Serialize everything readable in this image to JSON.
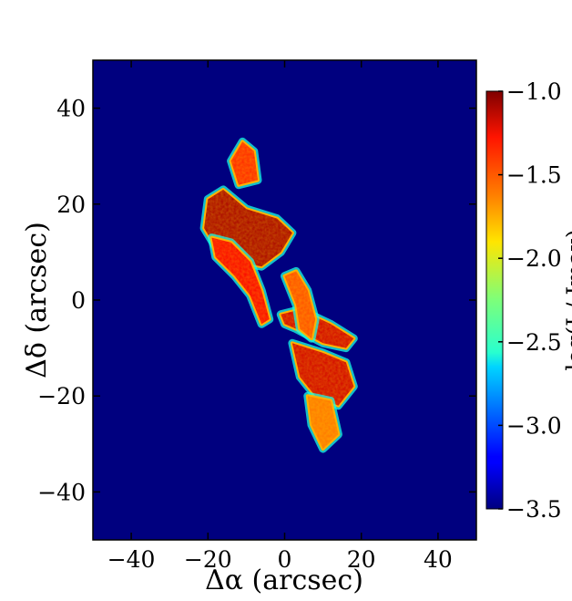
{
  "chart_data": {
    "type": "heatmap",
    "xlabel": "Δα (arcsec)",
    "ylabel": "Δδ (arcsec)",
    "xlim": [
      -50,
      50
    ],
    "ylim": [
      -50,
      50
    ],
    "x_ticks": [
      "−40",
      "−20",
      "0",
      "20",
      "40"
    ],
    "x_tick_values": [
      -40,
      -20,
      0,
      20,
      40
    ],
    "y_ticks": [
      "40",
      "20",
      "0",
      "−20",
      "−40"
    ],
    "y_tick_values": [
      40,
      20,
      0,
      -20,
      -40
    ],
    "background_color": "#00007f",
    "colorbar": {
      "colormap": "jet",
      "range": [
        -3.5,
        -1.0
      ],
      "ticks": [
        "−1.0",
        "−1.5",
        "−2.0",
        "−2.5",
        "−3.0",
        "−3.5"
      ],
      "tick_values": [
        -1.0,
        -1.5,
        -2.0,
        -2.5,
        -3.0,
        -3.5
      ],
      "label": "log(I / Imax)"
    },
    "emission_regions": [
      {
        "name": "northern upper lobe",
        "points": [
          [
            -11,
            33
          ],
          [
            -8,
            31
          ],
          [
            -7,
            25
          ],
          [
            -12,
            24
          ],
          [
            -14,
            29
          ]
        ],
        "level": -1.4
      },
      {
        "name": "northern arc",
        "points": [
          [
            -20,
            21
          ],
          [
            -16,
            23
          ],
          [
            -10,
            19
          ],
          [
            -2,
            17
          ],
          [
            2,
            14
          ],
          [
            -1,
            10
          ],
          [
            -6,
            7
          ],
          [
            -12,
            8
          ],
          [
            -18,
            11
          ],
          [
            -21,
            15
          ]
        ],
        "level": -1.1
      },
      {
        "name": "northern inner arc",
        "points": [
          [
            -19,
            13
          ],
          [
            -14,
            12
          ],
          [
            -9,
            8
          ],
          [
            -6,
            2
          ],
          [
            -4,
            -4
          ],
          [
            -6,
            -5
          ],
          [
            -9,
            1
          ],
          [
            -13,
            5
          ],
          [
            -18,
            9
          ]
        ],
        "level": -1.3
      },
      {
        "name": "middle bridge",
        "points": [
          [
            -1,
            -3
          ],
          [
            4,
            -2
          ],
          [
            12,
            -5
          ],
          [
            18,
            -8
          ],
          [
            16,
            -10
          ],
          [
            10,
            -9
          ],
          [
            3,
            -6
          ],
          [
            0,
            -5
          ]
        ],
        "level": -1.2
      },
      {
        "name": "eastern filament",
        "points": [
          [
            0,
            5
          ],
          [
            3,
            6
          ],
          [
            6,
            2
          ],
          [
            8,
            -4
          ],
          [
            7,
            -8
          ],
          [
            4,
            -6
          ],
          [
            3,
            -1
          ]
        ],
        "level": -1.5
      },
      {
        "name": "southern clump",
        "points": [
          [
            2,
            -9
          ],
          [
            10,
            -11
          ],
          [
            16,
            -13
          ],
          [
            18,
            -18
          ],
          [
            14,
            -22
          ],
          [
            8,
            -20
          ],
          [
            4,
            -16
          ]
        ],
        "level": -1.2
      },
      {
        "name": "southern tail",
        "points": [
          [
            6,
            -20
          ],
          [
            12,
            -21
          ],
          [
            14,
            -28
          ],
          [
            10,
            -31
          ],
          [
            7,
            -26
          ]
        ],
        "level": -1.6
      }
    ]
  }
}
